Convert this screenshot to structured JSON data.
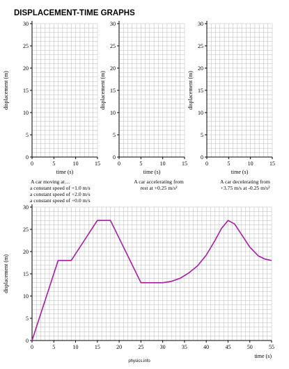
{
  "page": {
    "title": "DISPLACEMENT-TIME GRAPHS",
    "footer": "physics.info"
  },
  "colors": {
    "grid": "#b8b8b8",
    "axis": "#000000",
    "curve": "#aa1aa6"
  },
  "chart_data": [
    {
      "type": "line",
      "xlabel": "time (s)",
      "ylabel": "displacement (m)",
      "xlim": [
        0,
        15
      ],
      "ylim": [
        0,
        30
      ],
      "xticks": [
        "0",
        "5",
        "10",
        "15"
      ],
      "yticks": [
        "0",
        "5",
        "10",
        "15",
        "20",
        "25",
        "30"
      ],
      "grid": true,
      "series": [],
      "caption": [
        "A car moving at…",
        "a constant speed of +1.0 m/s",
        "a constant speed of +2.0 m/s",
        "a constant speed of +0.0 m/s"
      ]
    },
    {
      "type": "line",
      "xlabel": "time (s)",
      "ylabel": "displacement (m)",
      "xlim": [
        0,
        15
      ],
      "ylim": [
        0,
        30
      ],
      "xticks": [
        "0",
        "5",
        "10",
        "15"
      ],
      "yticks": [
        "0",
        "5",
        "10",
        "15",
        "20",
        "25",
        "30"
      ],
      "grid": true,
      "series": [],
      "caption": [
        "A car  accelerating from",
        "rest at +0.25 m/s²"
      ]
    },
    {
      "type": "line",
      "xlabel": "time (s)",
      "ylabel": "displacement (m)",
      "xlim": [
        0,
        15
      ],
      "ylim": [
        0,
        30
      ],
      "xticks": [
        "0",
        "5",
        "10",
        "15"
      ],
      "yticks": [
        "0",
        "5",
        "10",
        "15",
        "20",
        "25",
        "30"
      ],
      "grid": true,
      "series": [],
      "caption": [
        "A car decelerating from",
        "+3.75 m/s at -0.25 m/s²"
      ]
    },
    {
      "type": "line",
      "xlabel": "time (s)",
      "ylabel": "displacement (m)",
      "xlim": [
        0,
        55
      ],
      "ylim": [
        0,
        30
      ],
      "xticks": [
        "0",
        "5",
        "10",
        "15",
        "20",
        "25",
        "30",
        "35",
        "40",
        "45",
        "50",
        "55"
      ],
      "yticks": [
        "0",
        "5",
        "10",
        "15",
        "20",
        "25",
        "30"
      ],
      "grid": true,
      "series": [
        {
          "points": [
            [
              0,
              0
            ],
            [
              6,
              18
            ],
            [
              9,
              18
            ],
            [
              15,
              27
            ],
            [
              18,
              27
            ],
            [
              25,
              13
            ],
            [
              30,
              13
            ],
            [
              32,
              13.3
            ],
            [
              34,
              14
            ],
            [
              36,
              15.2
            ],
            [
              38,
              16.8
            ],
            [
              40,
              19.2
            ],
            [
              42,
              22.5
            ],
            [
              43.5,
              25.2
            ],
            [
              45,
              27
            ],
            [
              46.5,
              26.2
            ],
            [
              48,
              24
            ],
            [
              50,
              21
            ],
            [
              52,
              19
            ],
            [
              53.5,
              18.3
            ],
            [
              55,
              18
            ]
          ]
        }
      ],
      "caption": []
    }
  ]
}
